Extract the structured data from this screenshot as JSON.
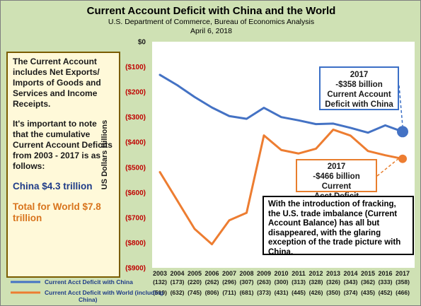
{
  "title": "Current Account Deficit with China and the World",
  "subtitle1": "U.S. Department of Commerce, Bureau of Economics Analysis",
  "subtitle2": "April 6, 2018",
  "left_box": {
    "p1": "The Current Account includes Net Exports/ Imports of Goods and Services and Income Receipts.",
    "p2": "It's important to note that the cumulative Current Account Deficits from 2003 - 2017 is as follows:",
    "china": "China $4.3 trillion",
    "world": "Total for World $7.8 trillion"
  },
  "callout_china": {
    "line1": "2017",
    "line2": "-$358 billion",
    "line3": "Current Account",
    "line4": "Deficit with China"
  },
  "callout_world": {
    "line1": "2017",
    "line2": "-$466 billion  Current",
    "line3": "Acct Deficit"
  },
  "note": "With the introduction of fracking, the U.S. trade imbalance (Current Account Balance) has all but disappeared, with the glaring exception of the trade picture with China.",
  "colors": {
    "china": "#4472c4",
    "world": "#ed7d31",
    "background": "#cfe1b4",
    "plot": "#ffffff",
    "negative_tick": "#c00000"
  },
  "chart_data": {
    "type": "line",
    "ylabel": "US Dollars Billions",
    "ylim": [
      -900,
      0
    ],
    "yticks": [
      0,
      -100,
      -200,
      -300,
      -400,
      -500,
      -600,
      -700,
      -800,
      -900
    ],
    "ytick_labels": [
      "$0",
      "($100)",
      "($200)",
      "($300)",
      "($400)",
      "($500)",
      "($600)",
      "($700)",
      "($800)",
      "($900)"
    ],
    "categories": [
      "2003",
      "2004",
      "2005",
      "2006",
      "2007",
      "2008",
      "2009",
      "2010",
      "2011",
      "2012",
      "2013",
      "2014",
      "2015",
      "2016",
      "2017"
    ],
    "series": [
      {
        "name": "Current Acct Deficit with China",
        "values": [
          -132,
          -173,
          -220,
          -262,
          -296,
          -307,
          -263,
          -300,
          -313,
          -328,
          -326,
          -343,
          -362,
          -333,
          -358
        ],
        "labels": [
          "(132)",
          "(173)",
          "(220)",
          "(262)",
          "(296)",
          "(307)",
          "(263)",
          "(300)",
          "(313)",
          "(328)",
          "(326)",
          "(343)",
          "(362)",
          "(333)",
          "(358)"
        ],
        "color": "#4472c4"
      },
      {
        "name": "Current Acct Deficit with World (including China)",
        "values": [
          -519,
          -632,
          -745,
          -806,
          -711,
          -681,
          -373,
          -431,
          -445,
          -426,
          -350,
          -374,
          -435,
          -452,
          -466
        ],
        "labels": [
          "(519)",
          "(632)",
          "(745)",
          "(806)",
          "(711)",
          "(681)",
          "(373)",
          "(431)",
          "(445)",
          "(426)",
          "(350)",
          "(374)",
          "(435)",
          "(452)",
          "(466)"
        ],
        "color": "#ed7d31"
      }
    ],
    "legend": "bottom-left (data table)"
  }
}
